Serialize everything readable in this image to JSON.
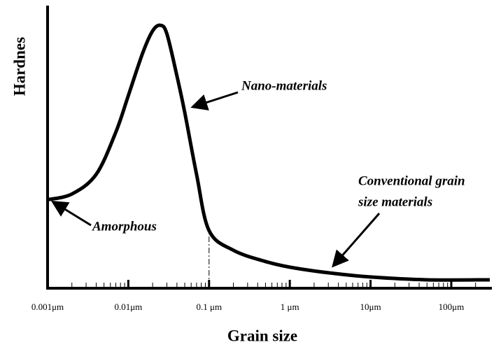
{
  "chart_data": {
    "type": "line",
    "xlabel": "Grain size",
    "ylabel": "Hardnes",
    "xscale": "log",
    "x": [
      0.001,
      0.002,
      0.004,
      0.007,
      0.01,
      0.015,
      0.02,
      0.025,
      0.03,
      0.04,
      0.05,
      0.07,
      0.1,
      0.2,
      0.5,
      1,
      3,
      10,
      50,
      300
    ],
    "values": [
      31,
      33,
      40,
      55,
      68,
      83,
      91,
      93,
      90,
      75,
      62,
      40,
      20,
      13,
      9,
      7,
      5,
      3.5,
      2.5,
      2.5
    ],
    "color": "#000000",
    "xlim": [
      0.001,
      300
    ],
    "ylim": [
      0,
      100
    ],
    "xticks": [
      {
        "value": 0.001,
        "label": "0.001μm"
      },
      {
        "value": 0.01,
        "label": "0.01μm"
      },
      {
        "value": 0.1,
        "label": "0.1 μm"
      },
      {
        "value": 1,
        "label": "1 μm"
      },
      {
        "value": 10,
        "label": "10μm"
      },
      {
        "value": 100,
        "label": "100μm"
      }
    ],
    "vline": 0.1,
    "annotations": [
      "Nano-materials",
      "Amorphous",
      "Conventional grain",
      "size materials"
    ]
  }
}
